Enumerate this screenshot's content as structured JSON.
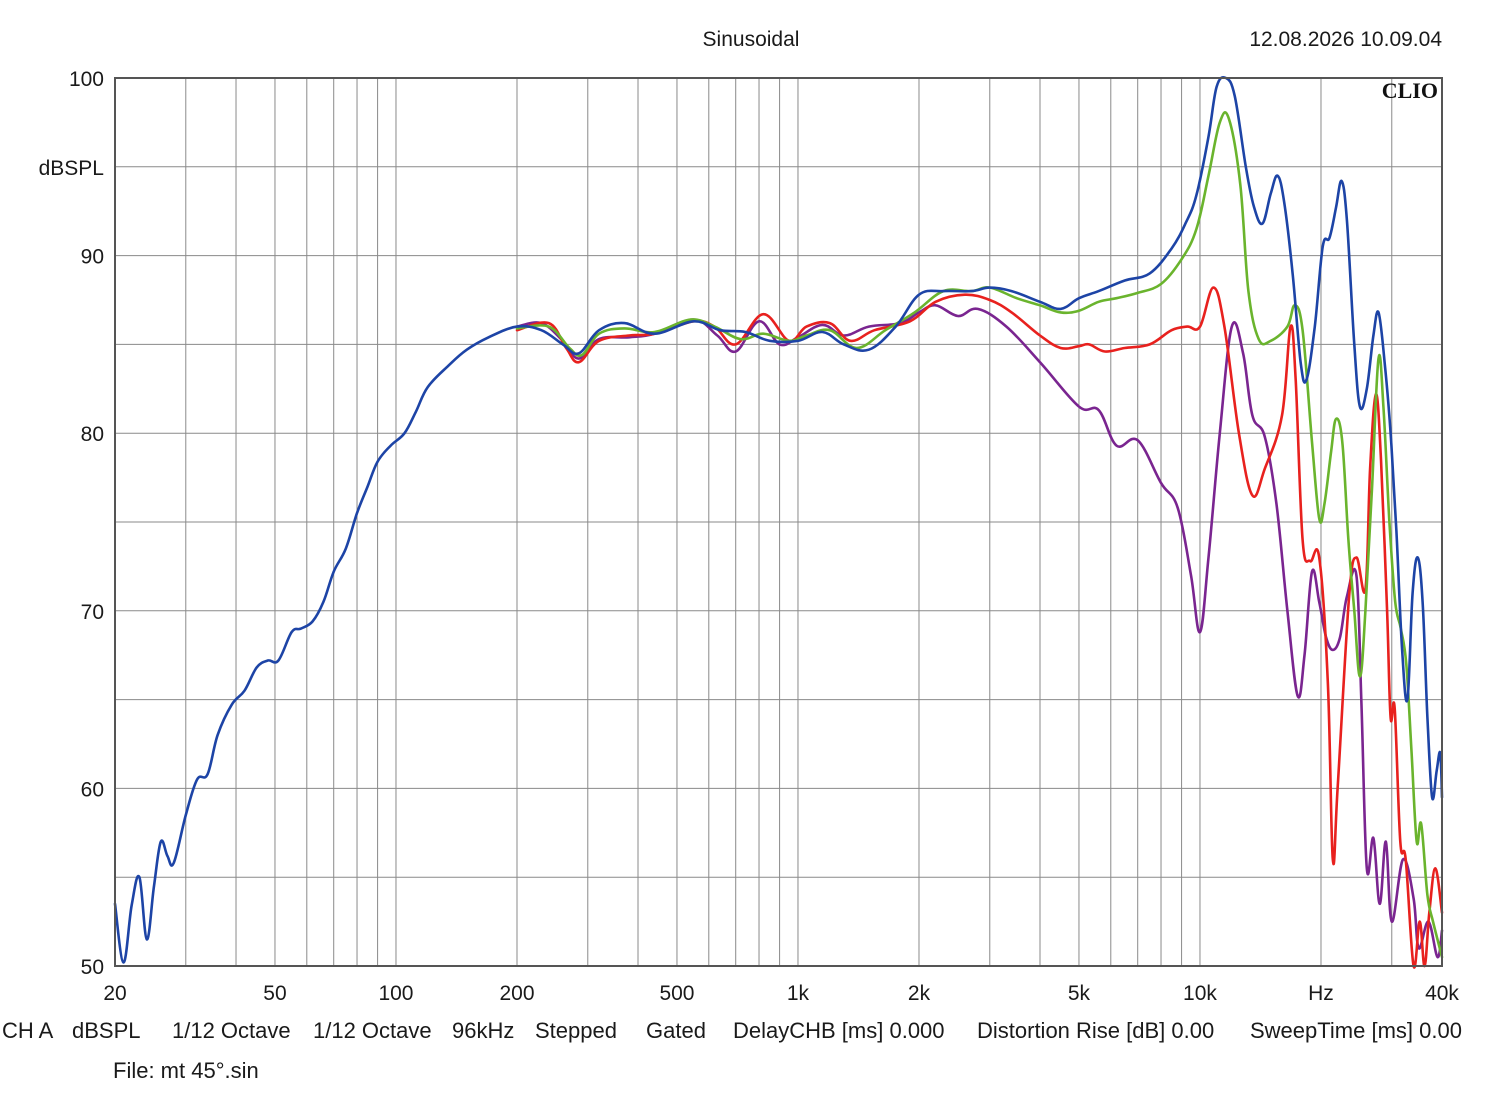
{
  "header": {
    "title": "Sinusoidal",
    "timestamp": "12.08.2026 10.09.04",
    "brand": "CLIO"
  },
  "chart_data": {
    "type": "line",
    "title": "Sinusoidal",
    "ylabel": "dBSPL",
    "xscale": "log",
    "xlim": [
      20,
      40000
    ],
    "ylim": [
      50,
      100
    ],
    "grid": true,
    "legend": "none",
    "x_ticks": [
      {
        "value": 20,
        "label": "20"
      },
      {
        "value": 50,
        "label": "50"
      },
      {
        "value": 100,
        "label": "100"
      },
      {
        "value": 200,
        "label": "200"
      },
      {
        "value": 500,
        "label": "500"
      },
      {
        "value": 1000,
        "label": "1k"
      },
      {
        "value": 2000,
        "label": "2k"
      },
      {
        "value": 5000,
        "label": "5k"
      },
      {
        "value": 10000,
        "label": "10k"
      },
      {
        "value": 20000,
        "label": "Hz"
      },
      {
        "value": 40000,
        "label": "40k"
      }
    ],
    "y_ticks": [
      {
        "value": 100,
        "label": "100"
      },
      {
        "value": 90,
        "label": "90"
      },
      {
        "value": 80,
        "label": "80"
      },
      {
        "value": 70,
        "label": "70"
      },
      {
        "value": 60,
        "label": "60"
      },
      {
        "value": 50,
        "label": "50"
      }
    ],
    "series": [
      {
        "color": "#7a2590",
        "points": [
          [
            200,
            86.0
          ],
          [
            230,
            86.2
          ],
          [
            260,
            85.2
          ],
          [
            285,
            84.2
          ],
          [
            320,
            85.3
          ],
          [
            380,
            85.4
          ],
          [
            440,
            85.6
          ],
          [
            550,
            86.4
          ],
          [
            630,
            85.5
          ],
          [
            700,
            84.6
          ],
          [
            800,
            86.3
          ],
          [
            900,
            85.0
          ],
          [
            1000,
            85.4
          ],
          [
            1150,
            86.1
          ],
          [
            1300,
            85.5
          ],
          [
            1500,
            86.0
          ],
          [
            1800,
            86.2
          ],
          [
            2000,
            86.8
          ],
          [
            2200,
            87.2
          ],
          [
            2500,
            86.6
          ],
          [
            2800,
            87.0
          ],
          [
            3300,
            86.0
          ],
          [
            4000,
            84.0
          ],
          [
            5000,
            81.5
          ],
          [
            5600,
            81.3
          ],
          [
            6200,
            79.3
          ],
          [
            7000,
            79.6
          ],
          [
            8000,
            77.2
          ],
          [
            8800,
            75.8
          ],
          [
            9500,
            72.0
          ],
          [
            10000,
            68.8
          ],
          [
            10500,
            73.0
          ],
          [
            11200,
            80.0
          ],
          [
            12000,
            86.0
          ],
          [
            12800,
            84.5
          ],
          [
            13500,
            81.0
          ],
          [
            14500,
            79.8
          ],
          [
            15500,
            76.0
          ],
          [
            16500,
            70.0
          ],
          [
            17500,
            65.2
          ],
          [
            18200,
            67.5
          ],
          [
            19000,
            72.2
          ],
          [
            19800,
            70.5
          ],
          [
            20600,
            68.5
          ],
          [
            21400,
            67.8
          ],
          [
            22300,
            68.5
          ],
          [
            23200,
            70.8
          ],
          [
            24500,
            72.0
          ],
          [
            25200,
            65.0
          ],
          [
            26000,
            55.5
          ],
          [
            27000,
            57.2
          ],
          [
            28000,
            53.5
          ],
          [
            29000,
            57.0
          ],
          [
            30000,
            52.5
          ],
          [
            32000,
            56.0
          ],
          [
            34000,
            53.8
          ],
          [
            35000,
            51.0
          ],
          [
            37000,
            52.5
          ],
          [
            39000,
            50.5
          ],
          [
            40000,
            52.0
          ]
        ]
      },
      {
        "color": "#e8211e",
        "points": [
          [
            200,
            85.8
          ],
          [
            240,
            86.2
          ],
          [
            265,
            84.8
          ],
          [
            285,
            84.0
          ],
          [
            320,
            85.2
          ],
          [
            380,
            85.5
          ],
          [
            440,
            85.6
          ],
          [
            550,
            86.3
          ],
          [
            620,
            86.0
          ],
          [
            700,
            85.0
          ],
          [
            820,
            86.7
          ],
          [
            950,
            85.2
          ],
          [
            1050,
            86.0
          ],
          [
            1200,
            86.2
          ],
          [
            1350,
            85.2
          ],
          [
            1550,
            85.8
          ],
          [
            1900,
            86.3
          ],
          [
            2200,
            87.4
          ],
          [
            2600,
            87.8
          ],
          [
            3000,
            87.5
          ],
          [
            3400,
            86.8
          ],
          [
            4000,
            85.5
          ],
          [
            4500,
            84.8
          ],
          [
            5000,
            84.9
          ],
          [
            5300,
            85.0
          ],
          [
            5800,
            84.6
          ],
          [
            6500,
            84.8
          ],
          [
            7500,
            85.0
          ],
          [
            8500,
            85.8
          ],
          [
            9300,
            86.0
          ],
          [
            10000,
            86.0
          ],
          [
            10800,
            88.2
          ],
          [
            11500,
            86.0
          ],
          [
            12500,
            80.0
          ],
          [
            13500,
            76.5
          ],
          [
            14500,
            78.0
          ],
          [
            16000,
            81.0
          ],
          [
            16800,
            86.0
          ],
          [
            17300,
            83.0
          ],
          [
            18000,
            74.0
          ],
          [
            18800,
            72.8
          ],
          [
            19800,
            73.0
          ],
          [
            20800,
            66.0
          ],
          [
            21400,
            56.0
          ],
          [
            22000,
            60.0
          ],
          [
            23500,
            70.8
          ],
          [
            24500,
            73.0
          ],
          [
            25800,
            71.2
          ],
          [
            26500,
            78.0
          ],
          [
            27400,
            82.2
          ],
          [
            28200,
            78.5
          ],
          [
            29200,
            70.0
          ],
          [
            29800,
            64.0
          ],
          [
            30500,
            64.5
          ],
          [
            31500,
            57.0
          ],
          [
            32500,
            56.0
          ],
          [
            34000,
            49.5
          ],
          [
            35200,
            52.5
          ],
          [
            36200,
            49.0
          ],
          [
            37200,
            53.0
          ],
          [
            38500,
            55.5
          ],
          [
            40000,
            53.0
          ]
        ]
      },
      {
        "color": "#6ab42d",
        "points": [
          [
            200,
            85.9
          ],
          [
            240,
            86.0
          ],
          [
            270,
            84.8
          ],
          [
            290,
            84.4
          ],
          [
            320,
            85.6
          ],
          [
            370,
            85.9
          ],
          [
            440,
            85.7
          ],
          [
            540,
            86.4
          ],
          [
            620,
            86.0
          ],
          [
            720,
            85.3
          ],
          [
            820,
            85.6
          ],
          [
            950,
            85.2
          ],
          [
            1050,
            85.5
          ],
          [
            1200,
            85.8
          ],
          [
            1400,
            84.8
          ],
          [
            1650,
            85.8
          ],
          [
            1950,
            86.8
          ],
          [
            2300,
            88.0
          ],
          [
            2700,
            88.0
          ],
          [
            3000,
            88.2
          ],
          [
            3500,
            87.6
          ],
          [
            4000,
            87.2
          ],
          [
            4500,
            86.8
          ],
          [
            5000,
            86.9
          ],
          [
            5600,
            87.4
          ],
          [
            6200,
            87.6
          ],
          [
            7000,
            87.9
          ],
          [
            8000,
            88.4
          ],
          [
            9000,
            89.8
          ],
          [
            9800,
            91.5
          ],
          [
            10500,
            94.5
          ],
          [
            11200,
            97.5
          ],
          [
            11800,
            97.7
          ],
          [
            12600,
            94.0
          ],
          [
            13200,
            88.0
          ],
          [
            14000,
            85.3
          ],
          [
            15000,
            85.2
          ],
          [
            16500,
            86.0
          ],
          [
            17200,
            87.2
          ],
          [
            18000,
            85.8
          ],
          [
            19000,
            79.5
          ],
          [
            19800,
            75.2
          ],
          [
            20400,
            76.0
          ],
          [
            21200,
            79.0
          ],
          [
            21800,
            80.8
          ],
          [
            22600,
            79.5
          ],
          [
            23400,
            74.0
          ],
          [
            24200,
            70.0
          ],
          [
            25000,
            66.3
          ],
          [
            25800,
            70.0
          ],
          [
            26800,
            77.0
          ],
          [
            27800,
            84.2
          ],
          [
            28600,
            81.5
          ],
          [
            29600,
            75.0
          ],
          [
            30600,
            70.5
          ],
          [
            31600,
            69.0
          ],
          [
            32600,
            67.0
          ],
          [
            33600,
            62.0
          ],
          [
            34600,
            57.0
          ],
          [
            35500,
            58.0
          ],
          [
            36800,
            54.0
          ],
          [
            38000,
            52.5
          ],
          [
            40000,
            50.5
          ]
        ]
      },
      {
        "color": "#1d44a6",
        "points": [
          [
            20,
            53.5
          ],
          [
            21,
            50.2
          ],
          [
            22,
            53.4
          ],
          [
            23,
            55.0
          ],
          [
            24,
            51.5
          ],
          [
            25,
            54.5
          ],
          [
            26,
            57.0
          ],
          [
            27,
            56.2
          ],
          [
            28,
            55.8
          ],
          [
            30,
            58.5
          ],
          [
            32,
            60.5
          ],
          [
            34,
            60.8
          ],
          [
            36,
            63.0
          ],
          [
            39,
            64.7
          ],
          [
            42,
            65.5
          ],
          [
            45,
            66.8
          ],
          [
            48,
            67.2
          ],
          [
            51,
            67.2
          ],
          [
            55,
            68.8
          ],
          [
            58,
            69.0
          ],
          [
            62,
            69.4
          ],
          [
            66,
            70.5
          ],
          [
            70,
            72.2
          ],
          [
            75,
            73.5
          ],
          [
            80,
            75.5
          ],
          [
            85,
            77.0
          ],
          [
            90,
            78.4
          ],
          [
            97,
            79.3
          ],
          [
            105,
            80.0
          ],
          [
            112,
            81.2
          ],
          [
            120,
            82.6
          ],
          [
            135,
            83.8
          ],
          [
            150,
            84.7
          ],
          [
            170,
            85.4
          ],
          [
            200,
            86.0
          ],
          [
            230,
            85.8
          ],
          [
            260,
            85.0
          ],
          [
            285,
            84.5
          ],
          [
            320,
            85.8
          ],
          [
            370,
            86.2
          ],
          [
            440,
            85.6
          ],
          [
            550,
            86.3
          ],
          [
            640,
            85.8
          ],
          [
            740,
            85.7
          ],
          [
            850,
            85.2
          ],
          [
            1000,
            85.2
          ],
          [
            1150,
            85.7
          ],
          [
            1300,
            85.0
          ],
          [
            1500,
            84.7
          ],
          [
            1750,
            86.0
          ],
          [
            2000,
            87.8
          ],
          [
            2300,
            88.0
          ],
          [
            2700,
            88.0
          ],
          [
            3000,
            88.2
          ],
          [
            3400,
            88.0
          ],
          [
            4000,
            87.4
          ],
          [
            4500,
            87.0
          ],
          [
            5000,
            87.6
          ],
          [
            5600,
            88.0
          ],
          [
            6500,
            88.6
          ],
          [
            7500,
            89.0
          ],
          [
            8500,
            90.4
          ],
          [
            9200,
            91.8
          ],
          [
            9800,
            93.4
          ],
          [
            10500,
            96.7
          ],
          [
            11000,
            99.5
          ],
          [
            11600,
            100.5
          ],
          [
            12200,
            99.0
          ],
          [
            13000,
            95.0
          ],
          [
            13600,
            92.8
          ],
          [
            14300,
            91.8
          ],
          [
            15000,
            93.5
          ],
          [
            15600,
            94.5
          ],
          [
            16200,
            93.0
          ],
          [
            17000,
            89.0
          ],
          [
            17800,
            84.0
          ],
          [
            18400,
            83.0
          ],
          [
            19300,
            86.0
          ],
          [
            20200,
            90.5
          ],
          [
            21000,
            91.0
          ],
          [
            21800,
            92.7
          ],
          [
            22500,
            94.2
          ],
          [
            23200,
            92.0
          ],
          [
            24200,
            85.0
          ],
          [
            25000,
            81.5
          ],
          [
            26000,
            82.5
          ],
          [
            27000,
            85.5
          ],
          [
            27800,
            86.8
          ],
          [
            28800,
            84.0
          ],
          [
            29800,
            80.0
          ],
          [
            30800,
            74.5
          ],
          [
            31800,
            68.0
          ],
          [
            32800,
            65.0
          ],
          [
            33800,
            71.0
          ],
          [
            34800,
            73.0
          ],
          [
            35800,
            70.5
          ],
          [
            36800,
            64.0
          ],
          [
            37800,
            59.5
          ],
          [
            38800,
            61.0
          ],
          [
            39600,
            62.0
          ],
          [
            40000,
            59.5
          ]
        ]
      }
    ]
  },
  "footer": {
    "items": [
      "CH A",
      "dBSPL",
      "1/12 Octave",
      "1/12 Octave",
      "96kHz",
      "Stepped",
      "Gated",
      "DelayCHB [ms] 0.000",
      "Distortion Rise [dB] 0.00",
      "SweepTime [ms] 0.00"
    ],
    "file": "File: mt 45°.sin"
  }
}
